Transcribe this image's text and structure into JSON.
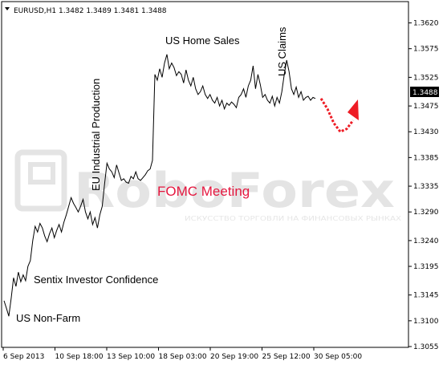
{
  "chart_data": {
    "type": "line",
    "title": "EURUSD,H1  1.3482 1.3489 1.3481 1.3488",
    "symbol": "EURUSD,H1",
    "ohlc": [
      "1.3482",
      "1.3489",
      "1.3481",
      "1.3488"
    ],
    "ylim": [
      1.3055,
      1.3632
    ],
    "yticks": [
      "1.3620",
      "1.3575",
      "1.3525",
      "1.3475",
      "1.3430",
      "1.3385",
      "1.3335",
      "1.3290",
      "1.3240",
      "1.3195",
      "1.3145",
      "1.3100",
      "1.3055"
    ],
    "xticks": [
      "6 Sep 2013",
      "10 Sep 18:00",
      "13 Sep 10:00",
      "18 Sep 03:00",
      "20 Sep 19:00",
      "25 Sep 12:00",
      "30 Sep 05:00"
    ],
    "current_price": "1.3488",
    "grid": false,
    "series": [
      {
        "x": [
          0,
          3,
          6,
          9,
          12,
          15,
          18,
          21,
          24,
          27,
          30,
          33,
          36,
          39,
          42,
          45,
          48,
          51,
          54,
          57,
          60,
          63,
          66,
          69,
          72,
          75,
          78,
          81,
          84,
          87,
          90,
          93,
          96,
          99,
          102,
          105,
          108,
          111,
          114,
          117,
          120,
          123,
          126,
          129,
          132,
          135,
          138,
          141,
          144,
          147,
          150,
          153,
          156,
          159,
          162,
          165,
          168,
          171,
          174,
          177,
          180,
          183,
          186,
          189,
          192,
          195,
          198,
          201,
          204,
          207,
          210,
          213,
          216,
          219,
          222,
          225,
          228,
          231,
          234,
          237,
          240,
          243,
          246,
          249,
          252,
          255,
          258,
          261,
          264,
          267,
          270,
          273,
          276,
          279,
          282,
          285,
          288,
          291,
          294,
          297,
          300,
          303,
          306,
          309,
          312,
          315,
          318,
          321,
          324,
          327,
          330,
          333,
          336,
          339,
          342,
          345,
          348,
          351,
          354,
          357,
          360,
          363,
          366,
          369,
          372,
          375,
          378,
          381,
          384,
          387,
          390
        ],
        "values": [
          1.3135,
          1.3122,
          1.3108,
          1.314,
          1.3175,
          1.316,
          1.3185,
          1.3168,
          1.318,
          1.317,
          1.3195,
          1.3205,
          1.324,
          1.3265,
          1.3255,
          1.327,
          1.3262,
          1.3248,
          1.3238,
          1.3252,
          1.3262,
          1.3245,
          1.3258,
          1.3268,
          1.3255,
          1.3272,
          1.3285,
          1.33,
          1.3315,
          1.3305,
          1.3298,
          1.329,
          1.33,
          1.3312,
          1.329,
          1.3278,
          1.329,
          1.3268,
          1.328,
          1.3262,
          1.3285,
          1.33,
          1.334,
          1.3375,
          1.3365,
          1.336,
          1.335,
          1.3372,
          1.3358,
          1.3345,
          1.3348,
          1.3342,
          1.334,
          1.3352,
          1.3348,
          1.336,
          1.3348,
          1.3345,
          1.335,
          1.3355,
          1.3362,
          1.3365,
          1.338,
          1.353,
          1.352,
          1.354,
          1.3525,
          1.355,
          1.3565,
          1.354,
          1.355,
          1.3542,
          1.3528,
          1.3535,
          1.353,
          1.3515,
          1.3538,
          1.352,
          1.351,
          1.3525,
          1.3505,
          1.3495,
          1.35,
          1.351,
          1.3495,
          1.3488,
          1.3495,
          1.3485,
          1.348,
          1.349,
          1.3475,
          1.3485,
          1.347,
          1.348,
          1.3476,
          1.3482,
          1.3478,
          1.3472,
          1.349,
          1.3495,
          1.3505,
          1.349,
          1.351,
          1.352,
          1.3545,
          1.3505,
          1.353,
          1.3512,
          1.349,
          1.3495,
          1.3485,
          1.348,
          1.3492,
          1.3475,
          1.349,
          1.348,
          1.35,
          1.353,
          1.3555,
          1.3535,
          1.3505,
          1.3495,
          1.3508,
          1.349,
          1.35,
          1.3485,
          1.349,
          1.3492,
          1.3485,
          1.349,
          1.3488
        ]
      }
    ],
    "forecast": {
      "color": "#ee1c25",
      "path_values": [
        1.3488,
        1.347,
        1.3445,
        1.343,
        1.3435,
        1.345
      ]
    },
    "annotations": [
      {
        "text": "US Non-Farm",
        "color": "#000000"
      },
      {
        "text": "Sentix Investor Confidence",
        "color": "#000000"
      },
      {
        "text": "EU Industrial Production",
        "color": "#000000",
        "rotated": true
      },
      {
        "text": "FOMC Meeting",
        "color": "#e5173f"
      },
      {
        "text": "US Home Sales",
        "color": "#000000"
      },
      {
        "text": "US Claims",
        "color": "#000000",
        "rotated": true
      }
    ],
    "watermark": {
      "text": "RoboForex",
      "subtext": "ИСКУССТВО ТОРГОВЛИ НА ФИНАНСОВЫХ РЫНКАХ"
    }
  }
}
